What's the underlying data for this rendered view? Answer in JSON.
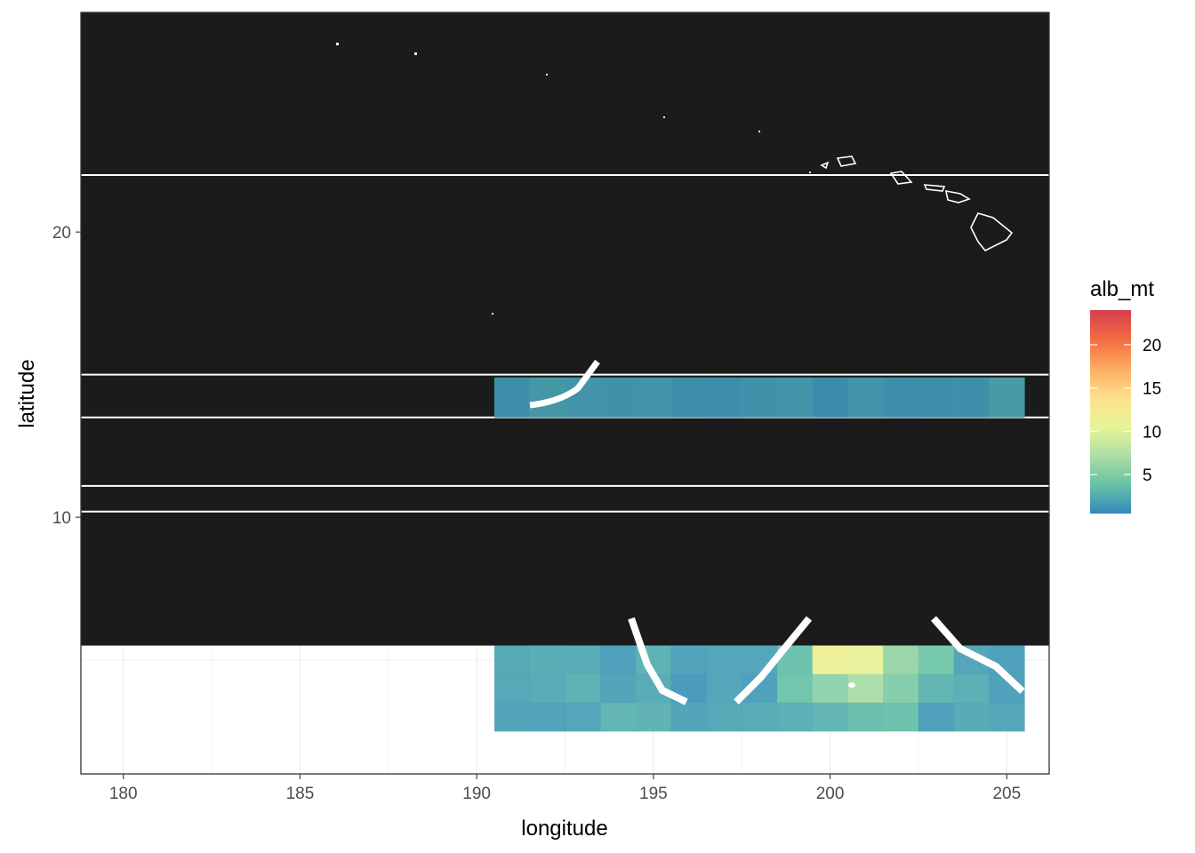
{
  "chart_data": {
    "type": "heatmap",
    "title": "",
    "xlabel": "longitude",
    "ylabel": "latitude",
    "xlim": [
      178.8,
      206.2
    ],
    "ylim": [
      1.0,
      27.7
    ],
    "x_ticks": [
      180,
      185,
      190,
      195,
      200,
      205
    ],
    "x_tick_labels": [
      "180",
      "185",
      "190",
      "195",
      "200",
      "205"
    ],
    "y_ticks": [
      10,
      20
    ],
    "y_tick_labels": [
      "10",
      "20"
    ],
    "grid": true,
    "legend": {
      "title": "alb_mt",
      "position": "right",
      "range": [
        0.5,
        24
      ],
      "breaks": [
        5,
        10,
        15,
        20
      ],
      "break_labels": [
        "5",
        "10",
        "15",
        "20"
      ],
      "colors": [
        "#3288bd",
        "#66c2a5",
        "#abdda4",
        "#e6f598",
        "#fee08b",
        "#fdae61",
        "#f46d43",
        "#d53e4f"
      ]
    },
    "black_bands": [
      {
        "lat_min": 13.5,
        "lat_max": 27.7
      },
      {
        "lat_min": 5.5,
        "lat_max": 13.5
      }
    ],
    "white_lines": [
      22.0,
      11.1,
      10.2,
      15.0
    ],
    "cells": {
      "lon_start": 190.5,
      "lon_step": 1.0,
      "lat_rows": [
        {
          "lat": 14.2,
          "height": 1.4,
          "values": [
            1.5,
            2.0,
            1.8,
            1.6,
            1.7,
            1.5,
            1.4,
            1.6,
            1.8,
            1.3,
            1.7,
            1.4,
            1.5,
            1.5,
            2.2
          ]
        },
        {
          "lat": 5.0,
          "height": 1.0,
          "values": [
            2.0,
            2.3,
            2.2,
            1.5,
            2.5,
            1.6,
            1.8,
            1.8,
            3.6,
            11.5,
            11.0,
            6.0,
            4.2,
            1.8,
            1.5
          ]
        },
        {
          "lat": 4.0,
          "height": 1.0,
          "values": [
            2.0,
            2.2,
            2.6,
            1.7,
            2.2,
            1.1,
            1.8,
            1.5,
            3.8,
            5.5,
            7.0,
            5.0,
            2.8,
            2.4,
            1.5
          ]
        },
        {
          "lat": 3.0,
          "height": 1.0,
          "values": [
            1.7,
            1.6,
            1.8,
            2.8,
            2.7,
            1.7,
            2.0,
            2.2,
            2.4,
            2.8,
            3.4,
            3.6,
            1.5,
            2.1,
            1.9
          ]
        }
      ]
    }
  }
}
